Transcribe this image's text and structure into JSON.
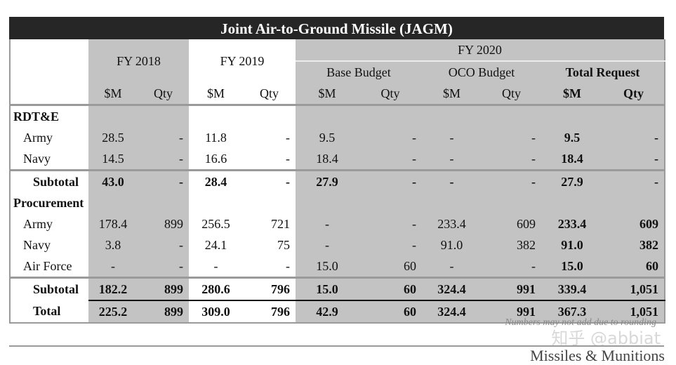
{
  "title": "Joint Air-to-Ground Missile (JAGM)",
  "headers": {
    "fy2018": "FY 2018",
    "fy2019": "FY 2019",
    "fy2020": "FY 2020",
    "base": "Base Budget",
    "oco": "OCO Budget",
    "total_request": "Total Request",
    "cols": [
      "$M",
      "Qty",
      "$M",
      "Qty",
      "$M",
      "Qty",
      "$M",
      "Qty",
      "$M",
      "Qty"
    ]
  },
  "rows": [
    {
      "label": "RDT&E",
      "kind": "section",
      "values": [
        "",
        "",
        "",
        "",
        "",
        "",
        "",
        "",
        "",
        ""
      ]
    },
    {
      "label": "Army",
      "kind": "item",
      "values": [
        "28.5",
        "-",
        "11.8",
        "-",
        "9.5",
        "-",
        "-",
        "-",
        "9.5",
        "-"
      ]
    },
    {
      "label": "Navy",
      "kind": "item",
      "values": [
        "14.5",
        "-",
        "16.6",
        "-",
        "18.4",
        "-",
        "-",
        "-",
        "18.4",
        "-"
      ]
    },
    {
      "label": "Subtotal",
      "kind": "subtotal",
      "values": [
        "43.0",
        "-",
        "28.4",
        "-",
        "27.9",
        "-",
        "-",
        "-",
        "27.9",
        "-"
      ]
    },
    {
      "label": "Procurement",
      "kind": "section",
      "values": [
        "",
        "",
        "",
        "",
        "",
        "",
        "",
        "",
        "",
        ""
      ]
    },
    {
      "label": "Army",
      "kind": "item",
      "values": [
        "178.4",
        "899",
        "256.5",
        "721",
        "-",
        "-",
        "233.4",
        "609",
        "233.4",
        "609"
      ]
    },
    {
      "label": "Navy",
      "kind": "item",
      "values": [
        "3.8",
        "-",
        "24.1",
        "75",
        "-",
        "-",
        "91.0",
        "382",
        "91.0",
        "382"
      ]
    },
    {
      "label": "Air Force",
      "kind": "item",
      "values": [
        "-",
        "-",
        "-",
        "-",
        "15.0",
        "60",
        "-",
        "-",
        "15.0",
        "60"
      ]
    },
    {
      "label": "Subtotal",
      "kind": "subtotal",
      "values": [
        "182.2",
        "899",
        "280.6",
        "796",
        "15.0",
        "60",
        "324.4",
        "991",
        "339.4",
        "1,051"
      ]
    },
    {
      "label": "Total",
      "kind": "total",
      "values": [
        "225.2",
        "899",
        "309.0",
        "796",
        "42.9",
        "60",
        "324.4",
        "991",
        "367.3",
        "1,051"
      ]
    }
  ],
  "note": "Numbers may not add due to rounding",
  "watermark": "知乎 @abbiat",
  "footer": "Missiles & Munitions"
}
